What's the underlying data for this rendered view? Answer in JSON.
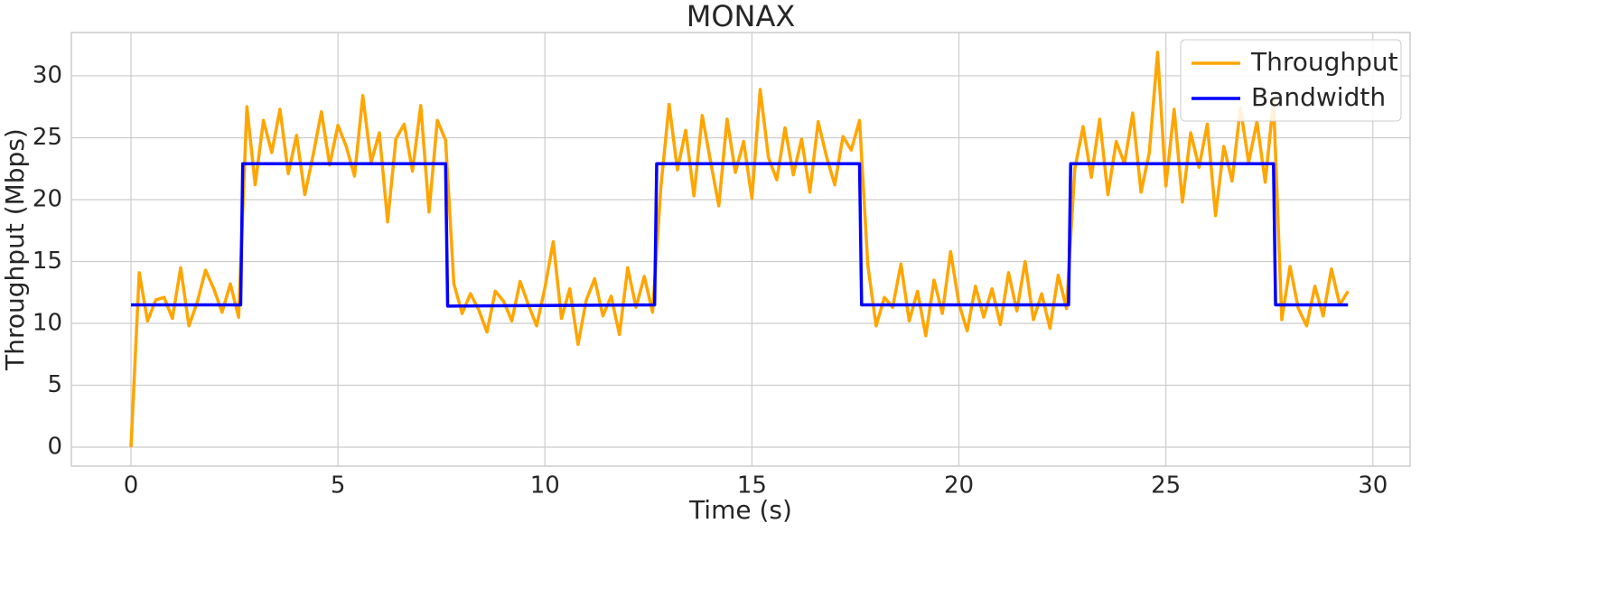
{
  "chart_data": {
    "type": "line",
    "title": "MONAX",
    "xlabel": "Time (s)",
    "ylabel": "Throughput (Mbps)",
    "xlim": [
      -1.44,
      30.9
    ],
    "ylim": [
      -1.53,
      33.5
    ],
    "xticks": [
      0,
      5,
      10,
      15,
      20,
      25,
      30
    ],
    "yticks": [
      0,
      5,
      10,
      15,
      20,
      25,
      30
    ],
    "grid": true,
    "legend": "upper right",
    "series": [
      {
        "name": "Throughput",
        "color": "#ffa500",
        "x": [
          0,
          0.2,
          0.4,
          0.6,
          0.8,
          1,
          1.2,
          1.4,
          1.6,
          1.8,
          2,
          2.2,
          2.4,
          2.6,
          2.8,
          3,
          3.2,
          3.4,
          3.6,
          3.8,
          4,
          4.2,
          4.4,
          4.6,
          4.8,
          5,
          5.2,
          5.4,
          5.6,
          5.8,
          6,
          6.2,
          6.4,
          6.6,
          6.8,
          7,
          7.2,
          7.4,
          7.6,
          7.8,
          8,
          8.2,
          8.4,
          8.6,
          8.8,
          9,
          9.2,
          9.4,
          9.6,
          9.8,
          10,
          10.2,
          10.4,
          10.6,
          10.8,
          11,
          11.2,
          11.4,
          11.6,
          11.8,
          12,
          12.2,
          12.4,
          12.6,
          12.8,
          13,
          13.2,
          13.4,
          13.6,
          13.8,
          14,
          14.2,
          14.4,
          14.6,
          14.8,
          15,
          15.2,
          15.4,
          15.6,
          15.8,
          16,
          16.2,
          16.4,
          16.6,
          16.8,
          17,
          17.2,
          17.4,
          17.6,
          17.8,
          18,
          18.2,
          18.4,
          18.6,
          18.8,
          19,
          19.2,
          19.4,
          19.6,
          19.8,
          20,
          20.2,
          20.4,
          20.6,
          20.8,
          21,
          21.2,
          21.4,
          21.6,
          21.8,
          22,
          22.2,
          22.4,
          22.6,
          22.8,
          23,
          23.2,
          23.4,
          23.6,
          23.8,
          24,
          24.2,
          24.4,
          24.6,
          24.8,
          25,
          25.2,
          25.4,
          25.6,
          25.8,
          26,
          26.2,
          26.4,
          26.6,
          26.8,
          27,
          27.2,
          27.4,
          27.6,
          27.8,
          28,
          28.2,
          28.4,
          28.6,
          28.8,
          29,
          29.2,
          29.4
        ],
        "values": [
          0,
          14.1,
          10.2,
          11.9,
          12.1,
          10.4,
          14.5,
          9.8,
          11.7,
          14.3,
          12.8,
          10.9,
          13.2,
          10.5,
          27.5,
          21.2,
          26.4,
          23.8,
          27.3,
          22.1,
          25.2,
          20.4,
          23.6,
          27.1,
          22.8,
          26.0,
          24.3,
          21.9,
          28.4,
          23.0,
          25.4,
          18.2,
          24.9,
          26.1,
          22.3,
          27.6,
          19.0,
          26.4,
          24.8,
          13.2,
          10.8,
          12.4,
          11.1,
          9.3,
          12.6,
          11.8,
          10.2,
          13.4,
          11.5,
          9.8,
          12.9,
          16.6,
          10.4,
          12.8,
          8.3,
          11.9,
          13.6,
          10.6,
          12.2,
          9.1,
          14.5,
          11.3,
          13.8,
          10.9,
          21.0,
          27.7,
          22.4,
          25.6,
          20.3,
          26.8,
          23.1,
          19.5,
          26.5,
          22.2,
          24.7,
          20.1,
          28.9,
          23.4,
          21.6,
          25.8,
          22.0,
          24.9,
          20.6,
          26.3,
          23.5,
          21.2,
          25.1,
          24.0,
          26.4,
          14.7,
          9.8,
          12.1,
          11.3,
          14.8,
          10.2,
          12.6,
          9.0,
          13.5,
          10.8,
          15.8,
          11.6,
          9.4,
          13.0,
          10.5,
          12.8,
          9.9,
          14.1,
          11.0,
          15.0,
          10.3,
          12.4,
          9.6,
          13.9,
          11.2,
          22.5,
          25.9,
          21.8,
          26.5,
          20.4,
          24.7,
          22.9,
          27.0,
          20.6,
          23.8,
          31.9,
          21.1,
          27.3,
          19.8,
          25.4,
          22.6,
          26.1,
          18.7,
          24.3,
          21.5,
          27.4,
          23.0,
          26.3,
          21.4,
          28.0,
          10.3,
          14.6,
          11.2,
          9.8,
          13.0,
          10.6,
          14.4,
          11.5,
          12.6
        ]
      },
      {
        "name": "Bandwidth",
        "color": "#0000ff",
        "x": [
          0,
          2.65,
          2.7,
          7.6,
          7.65,
          12.65,
          12.7,
          17.6,
          17.65,
          22.65,
          22.7,
          27.6,
          27.65,
          29.4
        ],
        "values": [
          11.5,
          11.5,
          22.9,
          22.9,
          11.4,
          11.5,
          22.9,
          22.9,
          11.5,
          11.5,
          22.9,
          22.9,
          11.5,
          11.5
        ]
      }
    ]
  }
}
